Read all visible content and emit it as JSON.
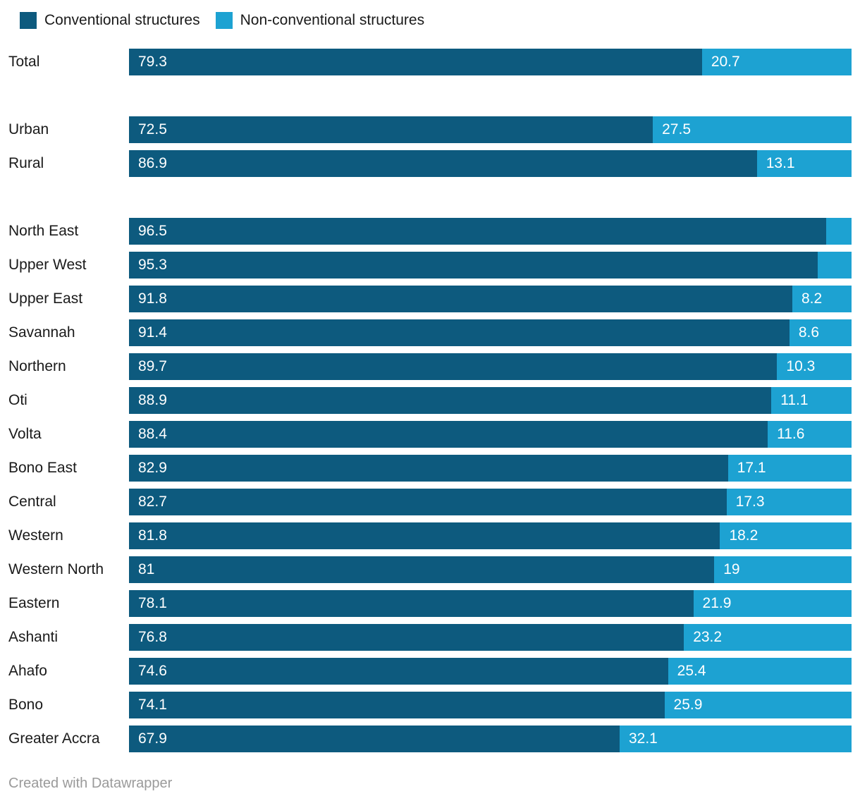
{
  "legend": {
    "items": [
      {
        "id": "conventional",
        "label": "Conventional structures",
        "color": "#0d5a7e"
      },
      {
        "id": "non_conventional",
        "label": "Non-conventional structures",
        "color": "#1da2d2"
      }
    ]
  },
  "footer": {
    "credit": "Created with Datawrapper"
  },
  "colors": {
    "conventional": "#0d5a7e",
    "non_conventional": "#1da2d2",
    "label_text": "#1a1a1a",
    "value_text": "#ffffff",
    "credit_text": "#9a9a9a",
    "background": "#ffffff"
  },
  "chart_data": {
    "type": "bar",
    "variant": "horizontal-stacked-100-percent",
    "unit": "percent",
    "xlim": [
      0,
      100
    ],
    "grid": false,
    "legend_position": "top-left",
    "series": [
      "Conventional structures",
      "Non-conventional structures"
    ],
    "rows": [
      {
        "label": "Total",
        "values": [
          79.3,
          20.7
        ],
        "show_labels": [
          true,
          true
        ]
      },
      {
        "spacer": true
      },
      {
        "label": "Urban",
        "values": [
          72.5,
          27.5
        ],
        "show_labels": [
          true,
          true
        ]
      },
      {
        "label": "Rural",
        "values": [
          86.9,
          13.1
        ],
        "show_labels": [
          true,
          true
        ]
      },
      {
        "spacer": true
      },
      {
        "label": "North East",
        "values": [
          96.5,
          3.5
        ],
        "show_labels": [
          true,
          false
        ]
      },
      {
        "label": "Upper West",
        "values": [
          95.3,
          4.7
        ],
        "show_labels": [
          true,
          false
        ]
      },
      {
        "label": "Upper East",
        "values": [
          91.8,
          8.2
        ],
        "show_labels": [
          true,
          true
        ]
      },
      {
        "label": "Savannah",
        "values": [
          91.4,
          8.6
        ],
        "show_labels": [
          true,
          true
        ]
      },
      {
        "label": "Northern",
        "values": [
          89.7,
          10.3
        ],
        "show_labels": [
          true,
          true
        ]
      },
      {
        "label": "Oti",
        "values": [
          88.9,
          11.1
        ],
        "show_labels": [
          true,
          true
        ]
      },
      {
        "label": "Volta",
        "values": [
          88.4,
          11.6
        ],
        "show_labels": [
          true,
          true
        ]
      },
      {
        "label": "Bono East",
        "values": [
          82.9,
          17.1
        ],
        "show_labels": [
          true,
          true
        ]
      },
      {
        "label": "Central",
        "values": [
          82.7,
          17.3
        ],
        "show_labels": [
          true,
          true
        ]
      },
      {
        "label": "Western",
        "values": [
          81.8,
          18.2
        ],
        "show_labels": [
          true,
          true
        ]
      },
      {
        "label": "Western North",
        "values": [
          81,
          19
        ],
        "show_labels": [
          true,
          true
        ]
      },
      {
        "label": "Eastern",
        "values": [
          78.1,
          21.9
        ],
        "show_labels": [
          true,
          true
        ]
      },
      {
        "label": "Ashanti",
        "values": [
          76.8,
          23.2
        ],
        "show_labels": [
          true,
          true
        ]
      },
      {
        "label": "Ahafo",
        "values": [
          74.6,
          25.4
        ],
        "show_labels": [
          true,
          true
        ]
      },
      {
        "label": "Bono",
        "values": [
          74.1,
          25.9
        ],
        "show_labels": [
          true,
          true
        ]
      },
      {
        "label": "Greater Accra",
        "values": [
          67.9,
          32.1
        ],
        "show_labels": [
          true,
          true
        ]
      }
    ]
  }
}
